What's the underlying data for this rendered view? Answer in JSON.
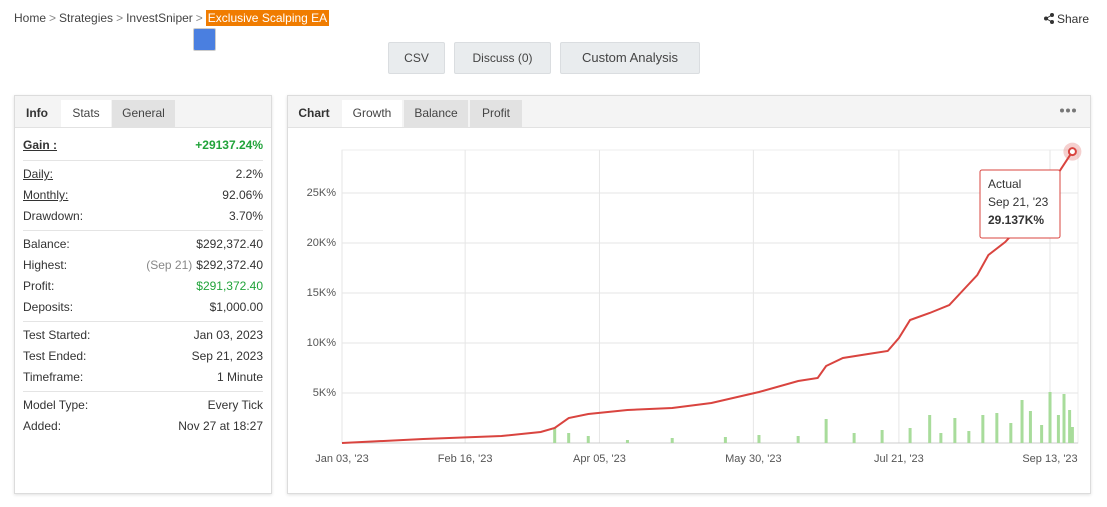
{
  "breadcrumb": {
    "items": [
      "Home",
      "Strategies",
      "InvestSniper",
      "Exclusive Scalping EA"
    ],
    "separator": ">"
  },
  "share": "Share",
  "buttons": [
    "CSV",
    "Discuss (0)",
    "Custom Analysis"
  ],
  "left_tabs": [
    "Info",
    "Stats",
    "General"
  ],
  "stats": {
    "groups": [
      {
        "rows": [
          {
            "label": "Gain :",
            "value": "+29137.24%",
            "color": "#21a33a"
          }
        ]
      },
      {
        "rows": [
          {
            "label": "Daily:",
            "value": "2.2%"
          },
          {
            "label": "Monthly:",
            "value": "92.06%"
          },
          {
            "label": "Drawdown:",
            "value": "3.70%"
          }
        ]
      },
      {
        "rows": [
          {
            "label": "Balance:",
            "value": "$292,372.40"
          },
          {
            "label": "Highest:",
            "note": "(Sep 21)",
            "value": "$292,372.40"
          },
          {
            "label": "Profit:",
            "value": "$291,372.40",
            "color": "#21a33a"
          },
          {
            "label": "Deposits:",
            "value": "$1,000.00"
          }
        ]
      },
      {
        "rows": [
          {
            "label": "Test Started:",
            "value": "Jan 03, 2023"
          },
          {
            "label": "Test Ended:",
            "value": "Sep 21, 2023"
          },
          {
            "label": "Timeframe:",
            "value": "1 Minute"
          }
        ]
      },
      {
        "rows": [
          {
            "label": "Model Type:",
            "value": "Every Tick"
          },
          {
            "label": "Added:",
            "value": "Nov 27 at 18:27"
          }
        ]
      }
    ]
  },
  "chart_tabs": {
    "label": "Chart",
    "tabs": [
      "Growth",
      "Balance",
      "Profit"
    ]
  },
  "chart": {
    "type": "line",
    "color": "#d9443f",
    "x": [
      "2023-01-03",
      "2023-02-01",
      "2023-03-01",
      "2023-03-15",
      "2023-03-20",
      "2023-03-25",
      "2023-04-01",
      "2023-04-15",
      "2023-05-01",
      "2023-05-15",
      "2023-06-01",
      "2023-06-15",
      "2023-06-22",
      "2023-06-25",
      "2023-07-01",
      "2023-07-10",
      "2023-07-17",
      "2023-07-21",
      "2023-07-25",
      "2023-08-01",
      "2023-08-08",
      "2023-08-14",
      "2023-08-18",
      "2023-08-22",
      "2023-08-28",
      "2023-09-01",
      "2023-09-07",
      "2023-09-12",
      "2023-09-21"
    ],
    "values": [
      0,
      400,
      700,
      1100,
      1500,
      2500,
      2900,
      3300,
      3500,
      4000,
      5100,
      6200,
      6500,
      7700,
      8500,
      8900,
      9200,
      10500,
      12300,
      13000,
      13800,
      15600,
      16800,
      18800,
      20100,
      21300,
      23500,
      25300,
      29137
    ],
    "bars": {
      "color": "#a8dc9b",
      "x": [
        "2023-03-20",
        "2023-03-25",
        "2023-04-01",
        "2023-04-15",
        "2023-05-01",
        "2023-05-20",
        "2023-06-01",
        "2023-06-15",
        "2023-06-25",
        "2023-07-05",
        "2023-07-15",
        "2023-07-25",
        "2023-08-01",
        "2023-08-05",
        "2023-08-10",
        "2023-08-15",
        "2023-08-20",
        "2023-08-25",
        "2023-08-30",
        "2023-09-03",
        "2023-09-06",
        "2023-09-10",
        "2023-09-13",
        "2023-09-16",
        "2023-09-18",
        "2023-09-20",
        "2023-09-21"
      ],
      "values": [
        1500,
        1000,
        700,
        300,
        500,
        600,
        800,
        700,
        2400,
        1000,
        1300,
        1500,
        2800,
        1000,
        2500,
        1200,
        2800,
        3000,
        2000,
        4300,
        3200,
        1800,
        5100,
        2800,
        4900,
        3300,
        1600
      ]
    },
    "xlim": [
      "2023-01-03",
      "2023-09-23"
    ],
    "xticks": [
      {
        "value": "2023-01-03",
        "label": "Jan 03, '23"
      },
      {
        "value": "2023-02-16",
        "label": "Feb 16, '23"
      },
      {
        "value": "2023-04-05",
        "label": "Apr 05, '23"
      },
      {
        "value": "2023-05-30",
        "label": "May 30, '23"
      },
      {
        "value": "2023-07-21",
        "label": "Jul 21, '23"
      },
      {
        "value": "2023-09-13",
        "label": "Sep 13, '23"
      }
    ],
    "ylim": [
      0,
      29300
    ],
    "yticks": [
      {
        "value": 5000,
        "label": "5K%"
      },
      {
        "value": 10000,
        "label": "10K%"
      },
      {
        "value": 15000,
        "label": "15K%"
      },
      {
        "value": 20000,
        "label": "20K%"
      },
      {
        "value": 25000,
        "label": "25K%"
      }
    ],
    "grid": true,
    "tooltip": {
      "title": "Actual",
      "date": "Sep 21, '23",
      "label": "29.137K%"
    }
  }
}
